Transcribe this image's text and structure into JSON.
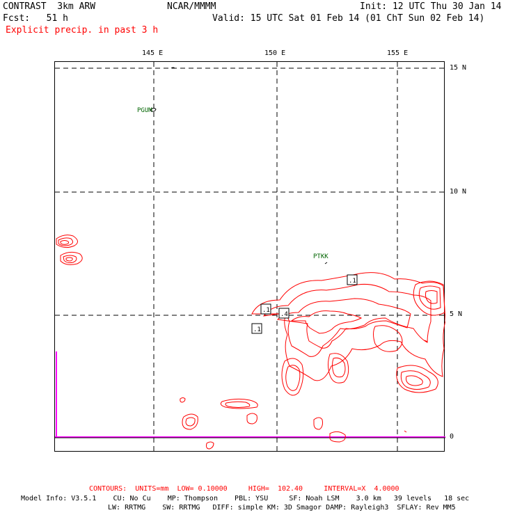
{
  "header": {
    "title": "CONTRAST  3km ARW",
    "org": "NCAR/MMMM",
    "init": "Init: 12 UTC Thu 30 Jan 14",
    "fcst": "Fcst:   51 h",
    "valid": "Valid: 15 UTC Sat 01 Feb 14 (01 ChT Sun 02 Feb 14)",
    "field": "Explicit precip. in past 3 h"
  },
  "map": {
    "lon_labels": [
      "145 E",
      "150 E",
      "155 E"
    ],
    "lat_labels": [
      "15 N",
      "10 N",
      "5 N",
      "0"
    ],
    "stations": [
      "PGUM",
      "PTKK"
    ],
    "contour_labels": [
      ".1",
      ".1",
      ".4",
      ".1"
    ],
    "colors": {
      "contour": "#ff0000",
      "grid": "#000000",
      "boundary": "#ff00ff",
      "station": "#006400"
    }
  },
  "footer": {
    "contours_prefix": "CONTOURS:",
    "units": "UNITS=mm",
    "low": "LOW= 0.10000",
    "high": "HIGH=  102.40",
    "interval": "INTERVAL=X  4.0000",
    "model_line1": "Model Info: V3.5.1    CU: No Cu    MP: Thompson    PBL: YSU     SF: Noah LSM    3.0 km   39 levels   18 sec",
    "model_line2": "LW: RRTMG    SW: RRTMG   DIFF: simple KM: 3D Smagor DAMP: Rayleigh3  SFLAY: Rev MM5"
  }
}
